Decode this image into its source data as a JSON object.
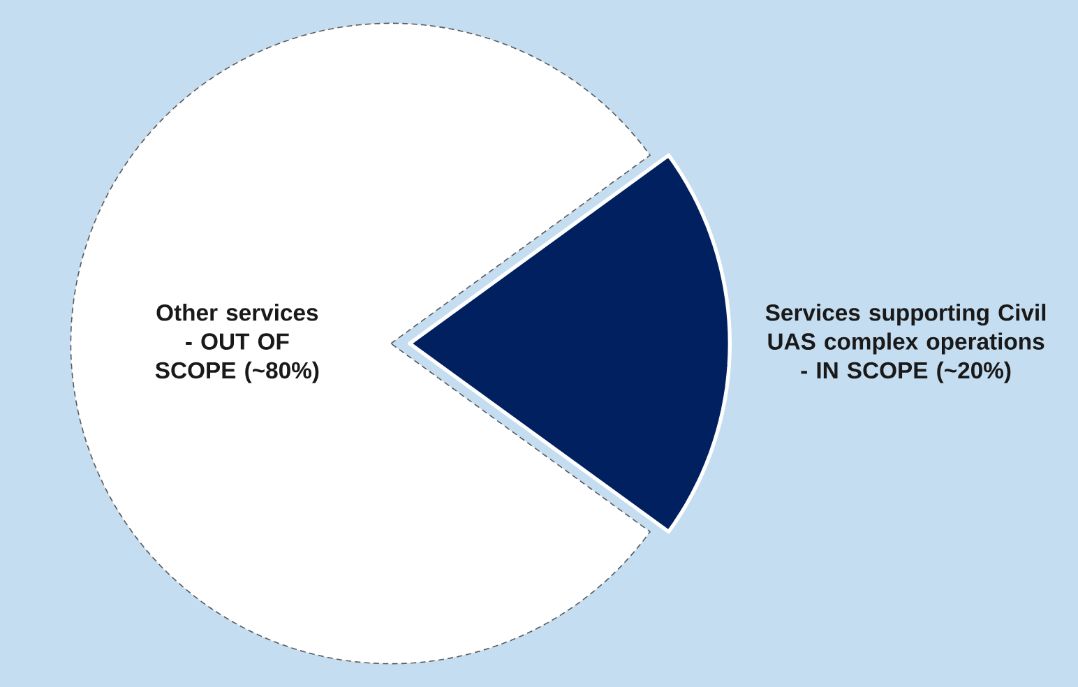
{
  "chart_data": {
    "type": "pie",
    "categories": [
      "Other services - OUT OF SCOPE (~80%)",
      "Services supporting Civil UAS complex operations - IN SCOPE (~20%)"
    ],
    "values": [
      80,
      20
    ],
    "colors": [
      "#ffffff",
      "#002060"
    ]
  }
}
